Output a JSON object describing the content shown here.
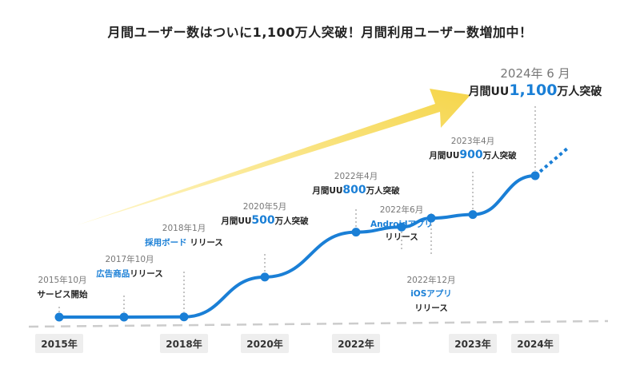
{
  "title": "月間ユーザー数はついに1,100万人突破！月間利用ユーザー数増加中！",
  "colors": {
    "line": "#1a7fd6",
    "accent": "#1a7fd6",
    "arrow_start": "#fff7cc",
    "arrow_end": "#f5d54a",
    "connector": "#c4c4c4",
    "baseline": "#cccccc"
  },
  "chart_data": {
    "type": "line",
    "points": [
      {
        "date": "2015年10月",
        "value_10k_users": 0,
        "label": "サービス開始"
      },
      {
        "date": "2017年10月",
        "value_10k_users": 5,
        "label": "広告商品リリース"
      },
      {
        "date": "2018年1月",
        "value_10k_users": 20,
        "label": "採用ボード リリース"
      },
      {
        "date": "2020年5月",
        "value_10k_users": 500,
        "label": "月間UU500万人突破"
      },
      {
        "date": "2022年4月",
        "value_10k_users": 800,
        "label": "月間UU800万人突破"
      },
      {
        "date": "2022年6月",
        "value_10k_users": 830,
        "label": "Androidアプリ リリース"
      },
      {
        "date": "2022年12月",
        "value_10k_users": 880,
        "label": "iOSアプリ リリース"
      },
      {
        "date": "2023年4月",
        "value_10k_users": 900,
        "label": "月間UU900万人突破"
      },
      {
        "date": "2024年6月",
        "value_10k_users": 1100,
        "label": "月間UU1,100万人突破"
      }
    ],
    "x_axis_labels": [
      "2015年",
      "2018年",
      "2020年",
      "2022年",
      "2023年",
      "2024年"
    ]
  },
  "annotations": [
    {
      "date": "2015年10月",
      "lines": [
        [
          {
            "t": "サービス開始"
          }
        ]
      ]
    },
    {
      "date": "2017年10月",
      "lines": [
        [
          {
            "t": "広告商品",
            "accent": true
          },
          {
            "t": "リリース"
          }
        ]
      ]
    },
    {
      "date": "2018年1月",
      "lines": [
        [
          {
            "t": "採用ボード",
            "accent": true
          },
          {
            "t": " リリース"
          }
        ]
      ]
    },
    {
      "date": "2020年5月",
      "lines": [
        [
          {
            "t": "月間UU"
          },
          {
            "t": "500",
            "accent": true,
            "num": true
          },
          {
            "t": "万人突破"
          }
        ]
      ]
    },
    {
      "date": "2022年4月",
      "lines": [
        [
          {
            "t": "月間UU"
          },
          {
            "t": "800",
            "accent": true,
            "num": true
          },
          {
            "t": "万人突破"
          }
        ]
      ]
    },
    {
      "date": "2022年6月",
      "lines": [
        [
          {
            "t": "Androidアプリ",
            "accent": true
          }
        ],
        [
          {
            "t": "リリース"
          }
        ]
      ]
    },
    {
      "date": "2022年12月",
      "lines": [
        [
          {
            "t": "iOSアプリ",
            "accent": true
          }
        ],
        [
          {
            "t": "リリース"
          }
        ]
      ]
    },
    {
      "date": "2023年4月",
      "lines": [
        [
          {
            "t": "月間UU"
          },
          {
            "t": "900",
            "accent": true,
            "num": true
          },
          {
            "t": "万人突破"
          }
        ]
      ]
    },
    {
      "date": "2024年 6 月",
      "big": true,
      "lines": [
        [
          {
            "t": "月間UU"
          },
          {
            "t": "1,100",
            "accent": true,
            "num": true
          },
          {
            "t": "万人突破"
          }
        ]
      ]
    }
  ]
}
